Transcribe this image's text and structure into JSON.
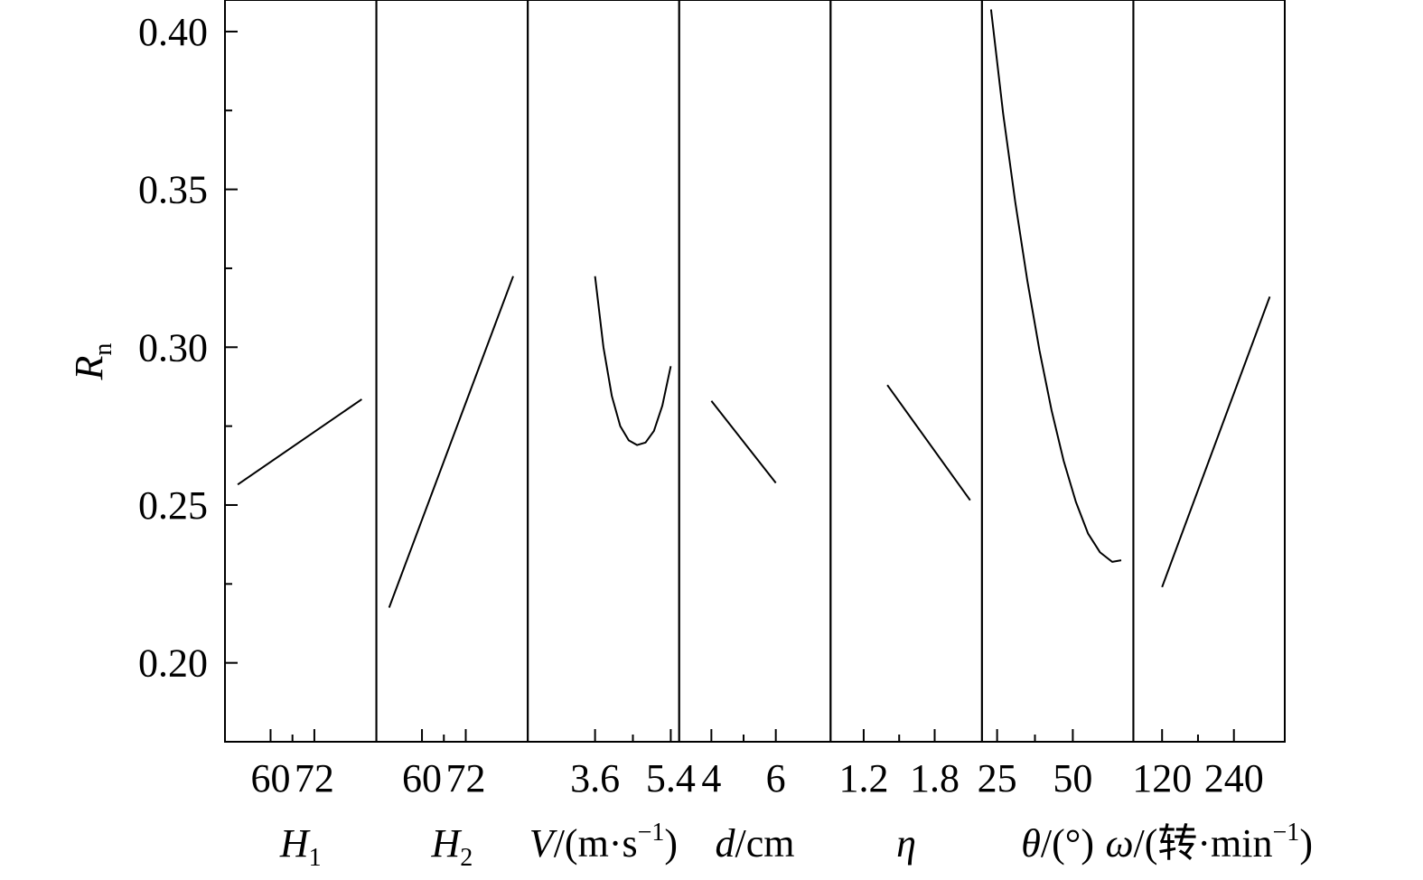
{
  "chart_data": {
    "type": "line",
    "layout": "main-effects-panels",
    "ylabel": {
      "main": "R",
      "sub": "n"
    },
    "ylim": [
      0.175,
      0.41
    ],
    "yticks": [
      {
        "value": 0.2,
        "label": "0.20"
      },
      {
        "value": 0.25,
        "label": "0.25"
      },
      {
        "value": 0.3,
        "label": "0.30"
      },
      {
        "value": 0.35,
        "label": "0.35"
      },
      {
        "value": 0.4,
        "label": "0.40"
      }
    ],
    "yminor": [
      0.225,
      0.275,
      0.325,
      0.375
    ],
    "grid": false,
    "legend": "none",
    "line_color": "#000000",
    "panels": [
      {
        "id": "H1",
        "xlabel": [
          {
            "t": "H",
            "i": true
          },
          {
            "t": "1",
            "sub": true
          }
        ],
        "xlim": [
          47.5,
          89
        ],
        "xticks": [
          {
            "value": 60,
            "label": "60"
          },
          {
            "value": 72,
            "label": "72"
          }
        ],
        "curve": {
          "x": [
            51,
            85
          ],
          "y": [
            0.2565,
            0.2835
          ]
        }
      },
      {
        "id": "H2",
        "xlabel": [
          {
            "t": "H",
            "i": true
          },
          {
            "t": "2",
            "sub": true
          }
        ],
        "xlim": [
          47.5,
          89
        ],
        "xticks": [
          {
            "value": 60,
            "label": "60"
          },
          {
            "value": 72,
            "label": "72"
          }
        ],
        "curve": {
          "x": [
            51,
            85
          ],
          "y": [
            0.2175,
            0.3225
          ]
        }
      },
      {
        "id": "V",
        "xlabel": [
          {
            "t": "V",
            "i": true
          },
          {
            "t": "/(m·s"
          },
          {
            "t": "−1",
            "sup": true
          },
          {
            "t": ")"
          }
        ],
        "xlim": [
          2.0,
          5.6
        ],
        "xticks": [
          {
            "value": 3.6,
            "label": "3.6"
          },
          {
            "value": 5.4,
            "label": "5.4"
          }
        ],
        "curve": {
          "x": [
            3.6,
            3.8,
            4.0,
            4.2,
            4.4,
            4.6,
            4.8,
            5.0,
            5.2,
            5.4
          ],
          "y": [
            0.3225,
            0.3,
            0.2845,
            0.275,
            0.2705,
            0.269,
            0.2698,
            0.2735,
            0.2815,
            0.294
          ]
        }
      },
      {
        "id": "d",
        "xlabel": [
          {
            "t": "d",
            "i": true
          },
          {
            "t": "/cm"
          }
        ],
        "xlim": [
          3.0,
          7.7
        ],
        "xticks": [
          {
            "value": 4,
            "label": "4"
          },
          {
            "value": 6,
            "label": "6"
          }
        ],
        "curve": {
          "x": [
            4,
            6
          ],
          "y": [
            0.283,
            0.257
          ]
        }
      },
      {
        "id": "eta",
        "xlabel": [
          {
            "t": "η",
            "i": true
          }
        ],
        "xlim": [
          0.92,
          2.2
        ],
        "xticks": [
          {
            "value": 1.2,
            "label": "1.2"
          },
          {
            "value": 1.8,
            "label": "1.8"
          }
        ],
        "curve": {
          "x": [
            1.4,
            2.1
          ],
          "y": [
            0.288,
            0.2515
          ]
        }
      },
      {
        "id": "theta",
        "xlabel": [
          {
            "t": "θ",
            "i": true
          },
          {
            "t": "/(°)"
          }
        ],
        "xlim": [
          20,
          70
        ],
        "xticks": [
          {
            "value": 25,
            "label": "25"
          },
          {
            "value": 50,
            "label": "50"
          }
        ],
        "curve": {
          "x": [
            23,
            27,
            31,
            35,
            39,
            43,
            47,
            51,
            55,
            59,
            63,
            66
          ],
          "y": [
            0.407,
            0.374,
            0.346,
            0.321,
            0.299,
            0.28,
            0.264,
            0.251,
            0.241,
            0.235,
            0.232,
            0.2325
          ]
        }
      },
      {
        "id": "omega",
        "xlabel": [
          {
            "t": "ω",
            "i": true
          },
          {
            "t": "/(转·min"
          },
          {
            "t": "−1",
            "sup": true
          },
          {
            "t": ")"
          }
        ],
        "xlim": [
          72,
          325
        ],
        "xticks": [
          {
            "value": 120,
            "label": "120"
          },
          {
            "value": 240,
            "label": "240"
          }
        ],
        "curve": {
          "x": [
            120,
            300
          ],
          "y": [
            0.224,
            0.316
          ]
        }
      }
    ]
  }
}
